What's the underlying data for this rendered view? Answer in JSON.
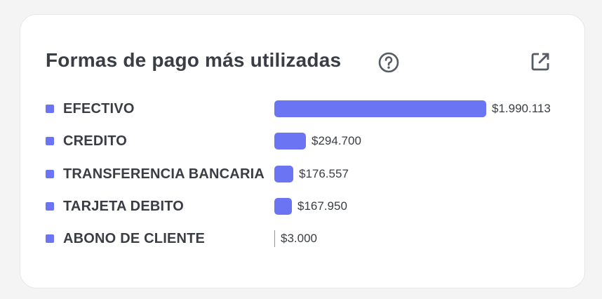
{
  "title": "Formas de pago más utilizadas",
  "icons": {
    "help": "help-circle-icon",
    "external": "open-external-icon"
  },
  "colors": {
    "bar": "#6b74f3",
    "legend": "#6b74f3",
    "icon": "#555a63"
  },
  "chart_data": {
    "type": "bar",
    "orientation": "horizontal",
    "title": "Formas de pago más utilizadas",
    "categories": [
      "EFECTIVO",
      "CREDITO",
      "TRANSFERENCIA BANCARIA",
      "TARJETA DEBITO",
      "ABONO DE CLIENTE"
    ],
    "values": [
      1990113,
      294700,
      176557,
      167950,
      3000
    ],
    "value_labels": [
      "$1.990.113",
      "$294.700",
      "$176.557",
      "$167.950",
      "$3.000"
    ],
    "xlim": [
      0,
      1990113
    ],
    "grid": false
  }
}
